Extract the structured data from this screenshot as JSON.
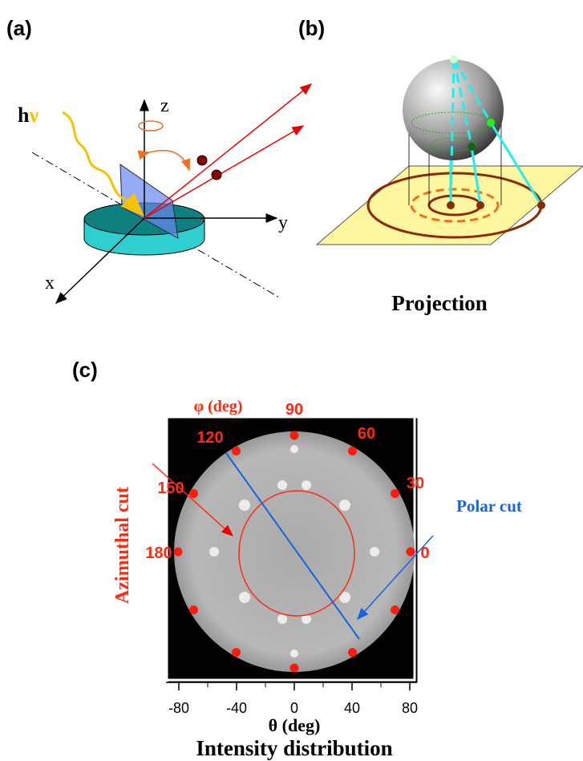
{
  "panel_a": {
    "label": "(a)",
    "photon_h": "h",
    "photon_nu": "ν",
    "axis_z": "z",
    "axis_y": "y",
    "axis_x": "x"
  },
  "panel_b": {
    "label": "(b)",
    "caption": "Projection"
  },
  "panel_c": {
    "label": "(c)",
    "phi_title": "φ (deg)",
    "phi_labels": [
      "90",
      "60",
      "30",
      "0",
      "120",
      "150",
      "180"
    ],
    "azimuthal": "Azimuthal cut",
    "polar": "Polar cut",
    "x_ticks": [
      "-80",
      "-40",
      "0",
      "40",
      "80"
    ],
    "x_title": "θ (deg)",
    "caption": "Intensity distribution"
  }
}
